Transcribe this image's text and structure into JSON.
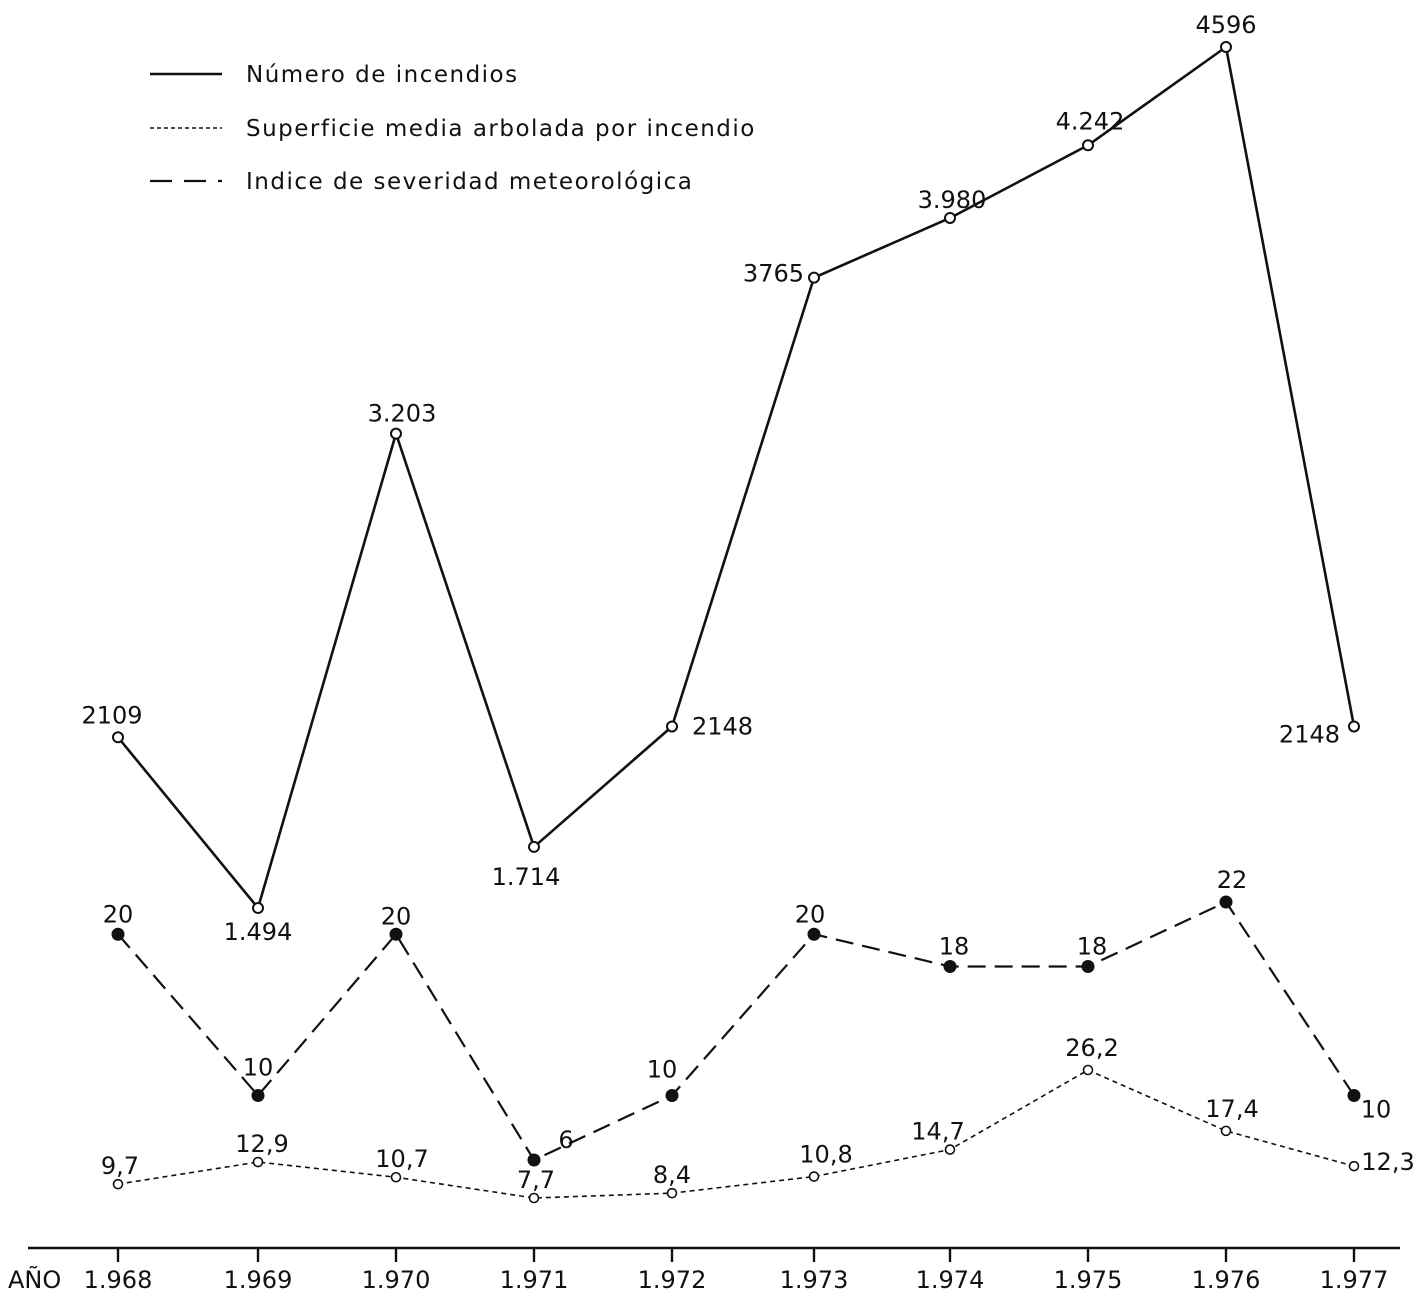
{
  "chart_data": {
    "type": "line",
    "x_axis_label": "AÑO",
    "categories": [
      "1.968",
      "1.969",
      "1.970",
      "1.971",
      "1.972",
      "1.973",
      "1.974",
      "1.975",
      "1.976",
      "1.977"
    ],
    "legend_position": "top-left",
    "grid": false,
    "series": [
      {
        "name": "Número de incendios",
        "style": "solid",
        "marker": "open-circle",
        "axis": "upper",
        "values": [
          2109,
          1494,
          3203,
          1714,
          2148,
          3765,
          3980,
          4242,
          4596,
          2148
        ],
        "labels": [
          "2109",
          "1.494",
          "3.203",
          "1.714",
          "2148",
          "3765",
          "3.980",
          "4.242",
          "4596",
          "2148"
        ]
      },
      {
        "name": "Superficie media arbolada por incendio",
        "style": "dotted",
        "marker": "small-open-circle",
        "axis": "lower",
        "values": [
          9.7,
          12.9,
          10.7,
          7.7,
          8.4,
          10.8,
          14.7,
          26.2,
          17.4,
          12.3
        ],
        "labels": [
          "9,7",
          "12,9",
          "10,7",
          "7,7",
          "8,4",
          "10,8",
          "14,7",
          "26,2",
          "17,4",
          "12,3"
        ]
      },
      {
        "name": "Indice de severidad meteorológica",
        "style": "dashed",
        "marker": "filled-circle",
        "axis": "lower",
        "values": [
          20,
          10,
          20,
          6,
          10,
          20,
          18,
          18,
          22,
          10
        ],
        "labels": [
          "20",
          "10",
          "20",
          "6",
          "10",
          "20",
          "18",
          "18",
          "22",
          "10"
        ]
      }
    ]
  }
}
